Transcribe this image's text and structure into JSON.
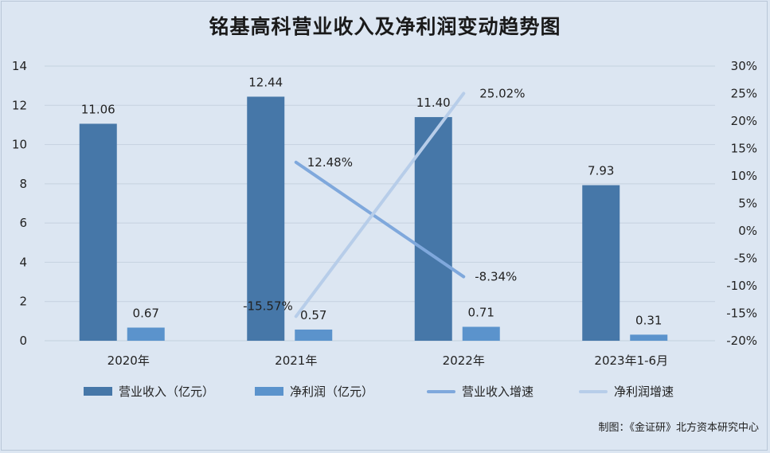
{
  "title": "铭基高科营业收入及净利润变动趋势图",
  "footer": "制图：《金证研》北方资本研究中心",
  "colors": {
    "revenue": "#4677a8",
    "profit": "#5b93cc",
    "revenue_growth": "#7fa8dc",
    "profit_growth": "#b7cde9",
    "grid": "#c5d1df",
    "background": "#dce6f2"
  },
  "legend": [
    {
      "label": "营业收入（亿元）",
      "kind": "bar",
      "color_key": "revenue"
    },
    {
      "label": "净利润（亿元）",
      "kind": "bar",
      "color_key": "profit"
    },
    {
      "label": "营业收入增速",
      "kind": "line",
      "color_key": "revenue_growth"
    },
    {
      "label": "净利润增速",
      "kind": "line",
      "color_key": "profit_growth"
    }
  ],
  "chart_data": {
    "type": "bar",
    "title": "铭基高科营业收入及净利润变动趋势图",
    "categories": [
      "2020年",
      "2021年",
      "2022年",
      "2023年1-6月"
    ],
    "ylim": [
      0,
      14
    ],
    "y_ticks": [
      "0",
      "2",
      "4",
      "6",
      "8",
      "10",
      "12",
      "14"
    ],
    "y2lim": [
      -20,
      30
    ],
    "y2_ticks": [
      "-20%",
      "-15%",
      "-10%",
      "-5%",
      "0%",
      "5%",
      "10%",
      "15%",
      "20%",
      "25%",
      "30%"
    ],
    "grid": true,
    "legend_position": "bottom",
    "series": [
      {
        "name": "营业收入（亿元）",
        "type": "bar",
        "axis": "left",
        "values": [
          11.06,
          12.44,
          11.4,
          7.93
        ],
        "labels": [
          "11.06",
          "12.44",
          "11.40",
          "7.93"
        ]
      },
      {
        "name": "净利润（亿元）",
        "type": "bar",
        "axis": "left",
        "values": [
          0.67,
          0.57,
          0.71,
          0.31
        ],
        "labels": [
          "0.67",
          "0.57",
          "0.71",
          "0.31"
        ]
      },
      {
        "name": "营业收入增速",
        "type": "line",
        "axis": "right",
        "values": [
          null,
          12.48,
          -8.34,
          null
        ],
        "labels": [
          null,
          "12.48%",
          "-8.34%",
          null
        ]
      },
      {
        "name": "净利润增速",
        "type": "line",
        "axis": "right",
        "values": [
          null,
          -15.57,
          25.02,
          null
        ],
        "labels": [
          null,
          "-15.57%",
          "25.02%",
          null
        ]
      }
    ]
  }
}
